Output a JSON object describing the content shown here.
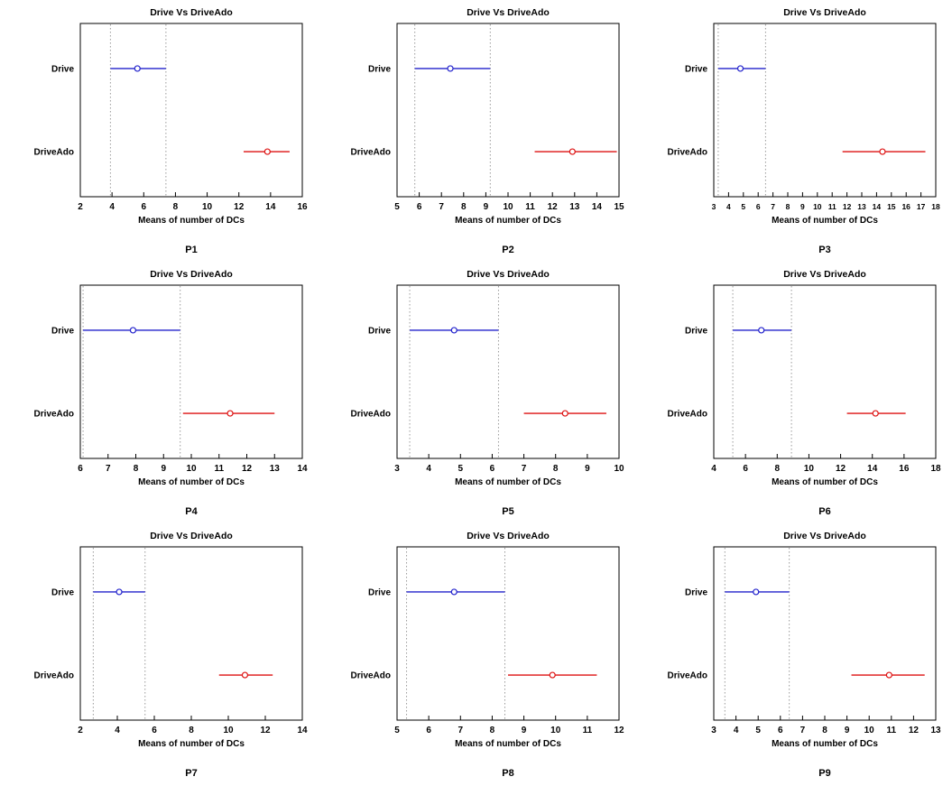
{
  "figure": {
    "grid": "3x3",
    "shared_title": "Drive Vs DriveAdo",
    "shared_xlabel": "Means of number of DCs",
    "series_labels": [
      "Drive",
      "DriveAdo"
    ],
    "colors": {
      "drive": "#2222cc",
      "driveado": "#dd1111",
      "dashed": "#9a9a9a",
      "axis": "#000000"
    }
  },
  "chart_data": [
    {
      "type": "interval",
      "caption": "P1",
      "title": "Drive Vs DriveAdo",
      "xlabel": "Means of number of DCs",
      "xlim": [
        2,
        16
      ],
      "xticks": [
        2,
        4,
        6,
        8,
        10,
        12,
        14,
        16
      ],
      "dashed_x": [
        3.9,
        7.4
      ],
      "series": [
        {
          "name": "Drive",
          "color": "#2222cc",
          "low": 3.9,
          "mean": 5.6,
          "high": 7.4
        },
        {
          "name": "DriveAdo",
          "color": "#dd1111",
          "low": 12.3,
          "mean": 13.8,
          "high": 15.2
        }
      ]
    },
    {
      "type": "interval",
      "caption": "P2",
      "title": "Drive Vs DriveAdo",
      "xlabel": "Means of number of DCs",
      "xlim": [
        5,
        15
      ],
      "xticks": [
        5,
        6,
        7,
        8,
        9,
        10,
        11,
        12,
        13,
        14,
        15
      ],
      "dashed_x": [
        5.8,
        9.2
      ],
      "series": [
        {
          "name": "Drive",
          "color": "#2222cc",
          "low": 5.8,
          "mean": 7.4,
          "high": 9.2
        },
        {
          "name": "DriveAdo",
          "color": "#dd1111",
          "low": 11.2,
          "mean": 12.9,
          "high": 14.9
        }
      ]
    },
    {
      "type": "interval",
      "caption": "P3",
      "title": "Drive Vs DriveAdo",
      "xlabel": "Means of number of DCs",
      "xlim": [
        3,
        18
      ],
      "xticks": [
        3,
        4,
        5,
        6,
        7,
        8,
        9,
        10,
        11,
        12,
        13,
        14,
        15,
        16,
        17,
        18
      ],
      "dashed_x": [
        3.3,
        6.5
      ],
      "series": [
        {
          "name": "Drive",
          "color": "#2222cc",
          "low": 3.3,
          "mean": 4.8,
          "high": 6.5
        },
        {
          "name": "DriveAdo",
          "color": "#dd1111",
          "low": 11.7,
          "mean": 14.4,
          "high": 17.3
        }
      ]
    },
    {
      "type": "interval",
      "caption": "P4",
      "title": "Drive Vs DriveAdo",
      "xlabel": "Means of number of DCs",
      "xlim": [
        6,
        14
      ],
      "xticks": [
        6,
        7,
        8,
        9,
        10,
        11,
        12,
        13,
        14
      ],
      "dashed_x": [
        6.1,
        9.6
      ],
      "series": [
        {
          "name": "Drive",
          "color": "#2222cc",
          "low": 6.1,
          "mean": 7.9,
          "high": 9.6
        },
        {
          "name": "DriveAdo",
          "color": "#dd1111",
          "low": 9.7,
          "mean": 11.4,
          "high": 13.0
        }
      ]
    },
    {
      "type": "interval",
      "caption": "P5",
      "title": "Drive Vs DriveAdo",
      "xlabel": "Means of number of DCs",
      "xlim": [
        3,
        10
      ],
      "xticks": [
        3,
        4,
        5,
        6,
        7,
        8,
        9,
        10
      ],
      "dashed_x": [
        3.4,
        6.2
      ],
      "series": [
        {
          "name": "Drive",
          "color": "#2222cc",
          "low": 3.4,
          "mean": 4.8,
          "high": 6.2
        },
        {
          "name": "DriveAdo",
          "color": "#dd1111",
          "low": 7.0,
          "mean": 8.3,
          "high": 9.6
        }
      ]
    },
    {
      "type": "interval",
      "caption": "P6",
      "title": "Drive Vs DriveAdo",
      "xlabel": "Means of number of DCs",
      "xlim": [
        4,
        18
      ],
      "xticks": [
        4,
        6,
        8,
        10,
        12,
        14,
        16,
        18
      ],
      "dashed_x": [
        5.2,
        8.9
      ],
      "series": [
        {
          "name": "Drive",
          "color": "#2222cc",
          "low": 5.2,
          "mean": 7.0,
          "high": 8.9
        },
        {
          "name": "DriveAdo",
          "color": "#dd1111",
          "low": 12.4,
          "mean": 14.2,
          "high": 16.1
        }
      ]
    },
    {
      "type": "interval",
      "caption": "P7",
      "title": "Drive Vs DriveAdo",
      "xlabel": "Means of number of DCs",
      "xlim": [
        2,
        14
      ],
      "xticks": [
        2,
        4,
        6,
        8,
        10,
        12,
        14
      ],
      "dashed_x": [
        2.7,
        5.5
      ],
      "series": [
        {
          "name": "Drive",
          "color": "#2222cc",
          "low": 2.7,
          "mean": 4.1,
          "high": 5.5
        },
        {
          "name": "DriveAdo",
          "color": "#dd1111",
          "low": 9.5,
          "mean": 10.9,
          "high": 12.4
        }
      ]
    },
    {
      "type": "interval",
      "caption": "P8",
      "title": "Drive Vs DriveAdo",
      "xlabel": "Means of number of DCs",
      "xlim": [
        5,
        12
      ],
      "xticks": [
        5,
        6,
        7,
        8,
        9,
        10,
        11,
        12
      ],
      "dashed_x": [
        5.3,
        8.4
      ],
      "series": [
        {
          "name": "Drive",
          "color": "#2222cc",
          "low": 5.3,
          "mean": 6.8,
          "high": 8.4
        },
        {
          "name": "DriveAdo",
          "color": "#dd1111",
          "low": 8.5,
          "mean": 9.9,
          "high": 11.3
        }
      ]
    },
    {
      "type": "interval",
      "caption": "P9",
      "title": "Drive Vs DriveAdo",
      "xlabel": "Means of number of DCs",
      "xlim": [
        3,
        13
      ],
      "xticks": [
        3,
        4,
        5,
        6,
        7,
        8,
        9,
        10,
        11,
        12,
        13
      ],
      "dashed_x": [
        3.5,
        6.4
      ],
      "series": [
        {
          "name": "Drive",
          "color": "#2222cc",
          "low": 3.5,
          "mean": 4.9,
          "high": 6.4
        },
        {
          "name": "DriveAdo",
          "color": "#dd1111",
          "low": 9.2,
          "mean": 10.9,
          "high": 12.5
        }
      ]
    }
  ]
}
